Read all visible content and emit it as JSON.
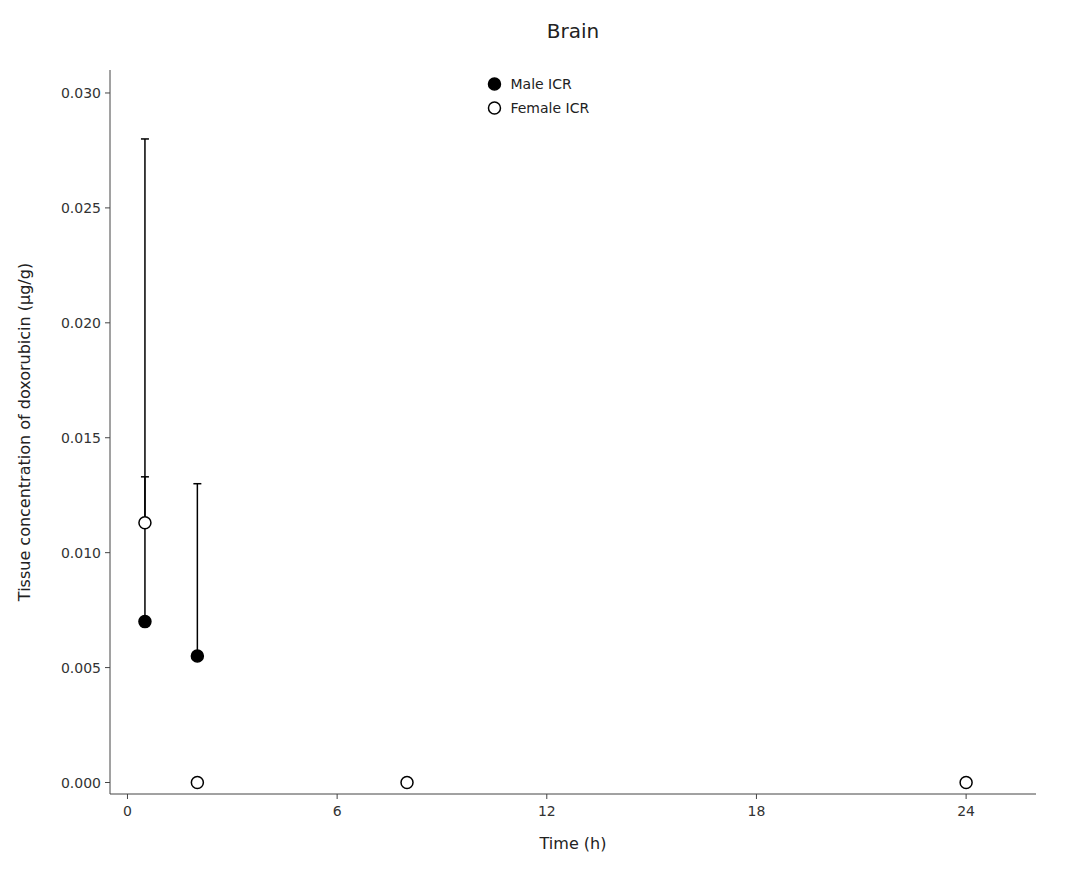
{
  "chart_data": {
    "type": "scatter",
    "title": "Brain",
    "xlabel": "Time (h)",
    "ylabel": "Tissue concentration of doxorubicin (μg/g)",
    "xlim": [
      -0.5,
      26
    ],
    "ylim": [
      -0.0005,
      0.031
    ],
    "xticks": [
      0,
      6,
      12,
      18,
      24
    ],
    "yticks": [
      {
        "value": 0.0,
        "label": "0.000"
      },
      {
        "value": 0.005,
        "label": "0.005"
      },
      {
        "value": 0.01,
        "label": "0.010"
      },
      {
        "value": 0.015,
        "label": "0.015"
      },
      {
        "value": 0.02,
        "label": "0.020"
      },
      {
        "value": 0.025,
        "label": "0.025"
      },
      {
        "value": 0.03,
        "label": "0.030"
      }
    ],
    "grid": false,
    "legend": "top",
    "series": [
      {
        "name": "Male ICR",
        "color": "#000000",
        "marker": "filled-circle",
        "x": [
          0.5,
          2.0
        ],
        "values": [
          0.007,
          0.0055
        ],
        "errors_low": [
          0.0,
          0.0
        ],
        "errors_high": [
          0.021,
          0.0075
        ]
      },
      {
        "name": "Female ICR",
        "color": "#000000",
        "marker": "open-circle",
        "x": [
          0.5,
          2.0,
          8.0,
          24.0
        ],
        "values": [
          0.0113,
          0.0,
          0.0,
          0.0
        ],
        "errors_low": [
          0.0,
          0.0,
          0.0,
          0.0
        ],
        "errors_high": [
          0.002,
          0.0,
          0.0,
          0.0
        ]
      }
    ]
  }
}
